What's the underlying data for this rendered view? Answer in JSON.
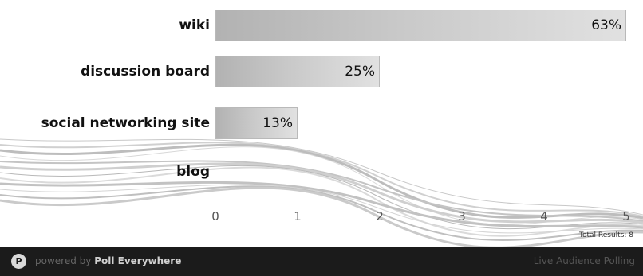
{
  "chart_data": {
    "type": "bar",
    "orientation": "horizontal",
    "categories": [
      "wiki",
      "discussion board",
      "social networking site",
      "blog"
    ],
    "values": [
      5,
      2,
      1,
      0
    ],
    "value_labels": [
      "63%",
      "25%",
      "13%",
      ""
    ],
    "xlim": [
      0,
      5
    ],
    "xticks": [
      "0",
      "1",
      "2",
      "3",
      "4",
      "5"
    ],
    "total_results": "Total Results: 8"
  },
  "footer": {
    "powered_prefix": "powered by",
    "brand": "Poll Everywhere",
    "tagline": "Live Audience Polling",
    "logo_icon": "poll-everywhere-logo-icon"
  },
  "colors": {
    "bar_fill_start": "#b2b2b2",
    "bar_fill_end": "#e1e1e1",
    "footer_bg": "#1b1b1b"
  }
}
